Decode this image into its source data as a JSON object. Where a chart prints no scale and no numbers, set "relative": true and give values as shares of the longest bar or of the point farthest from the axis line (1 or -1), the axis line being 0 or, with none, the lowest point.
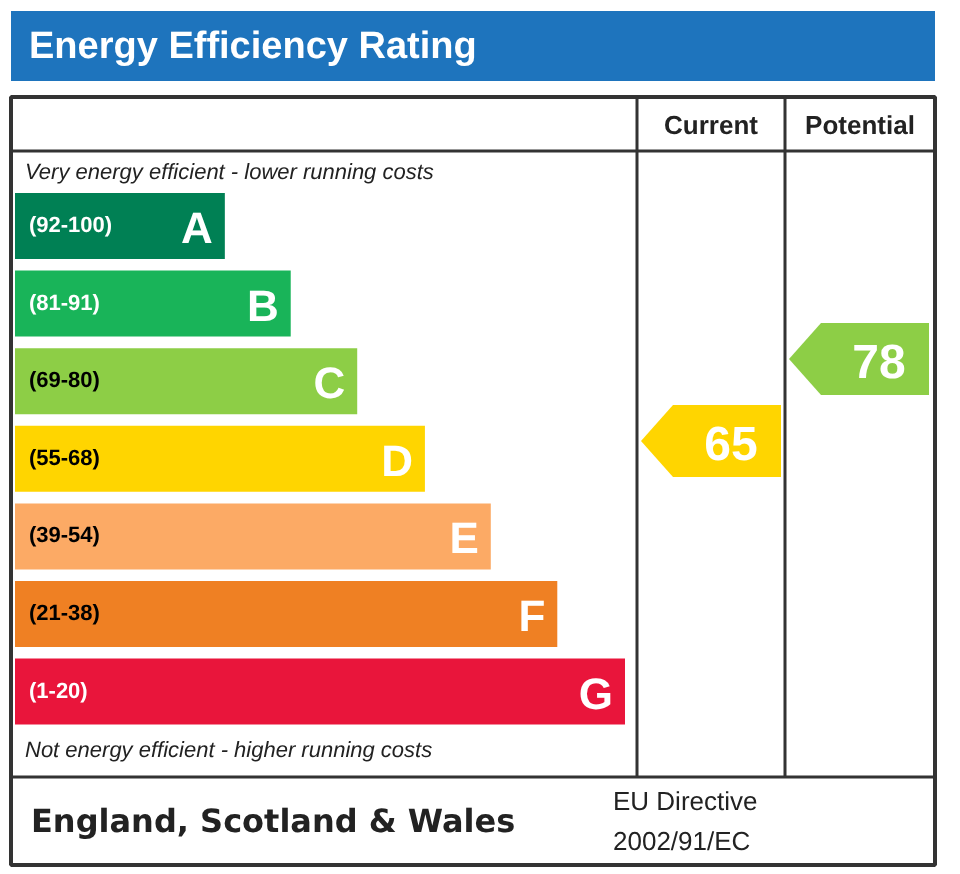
{
  "chart_data": {
    "type": "bar",
    "orientation": "horizontal",
    "relative": true,
    "title": "Energy Efficiency Rating",
    "categories": [
      "(92-100) A",
      "(81-91) B",
      "(69-80) C",
      "(55-68) D",
      "(39-54) E",
      "(21-38) F",
      "(1-20) G"
    ],
    "values": [
      0.344,
      0.452,
      0.561,
      0.672,
      0.78,
      0.889,
      1
    ],
    "colors": [
      "#008054",
      "#19b459",
      "#8dce46",
      "#ffd500",
      "#fcaa65",
      "#ef8023",
      "#e9153b"
    ],
    "annotations": [
      "Very energy efficient - lower running costs",
      "Not energy efficient - higher running costs",
      "Current",
      "Potential",
      "England, Scotland & Wales",
      "EU Directive",
      "2002/91/EC",
      "65",
      "78"
    ]
  }
}
